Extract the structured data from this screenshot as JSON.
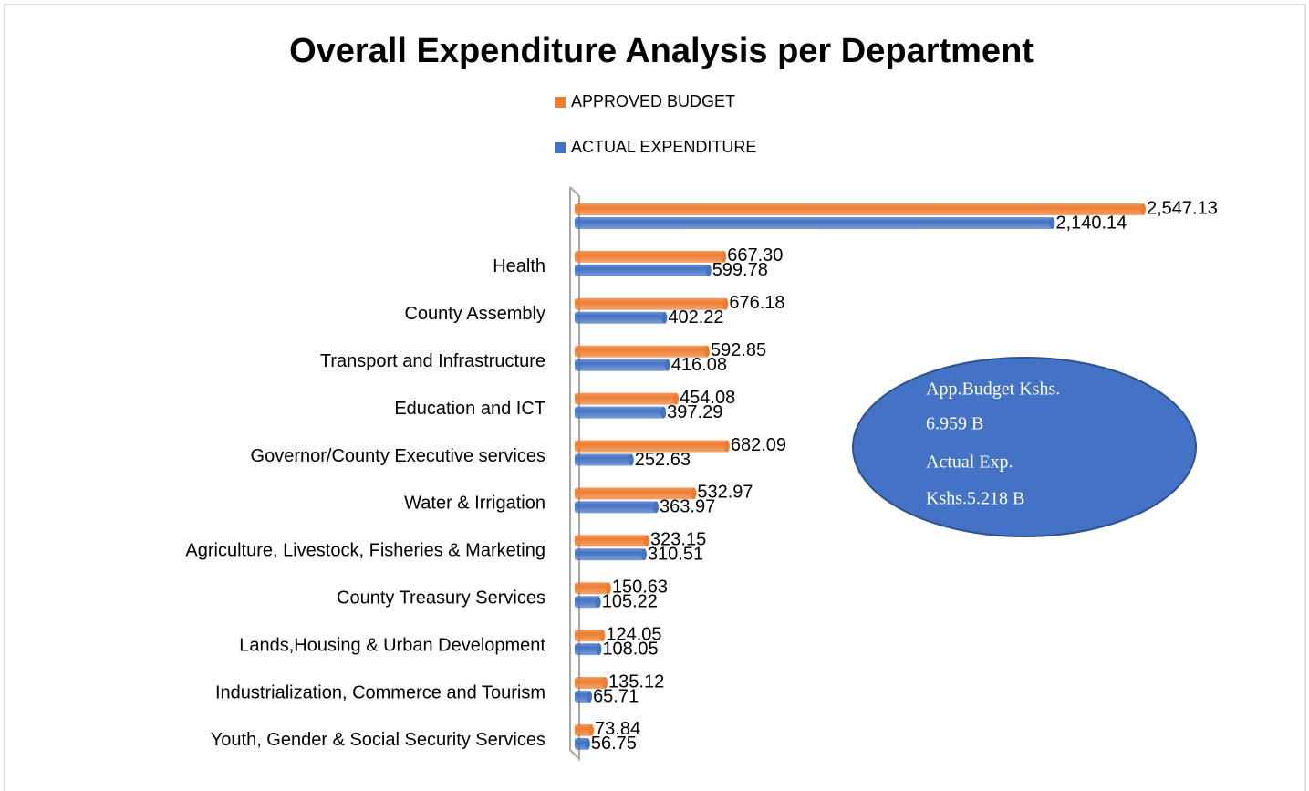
{
  "chart_data": {
    "type": "bar",
    "orientation": "horizontal",
    "title": "Overall Expenditure Analysis per Department",
    "categories": [
      null,
      "Health",
      "County Assembly",
      "Transport  and Infrastructure",
      "Education and ICT",
      "Governor/County Executive services",
      "Water & Irrigation",
      "Agriculture, Livestock, Fisheries & Marketing",
      "County Treasury Services",
      "Lands,Housing & Urban Development",
      "Industrialization, Commerce and Tourism",
      "Youth, Gender & Social Security Services"
    ],
    "series": [
      {
        "name": "APPROVED BUDGET",
        "color": "#ed7d31",
        "values": [
          2547.13,
          667.3,
          676.18,
          592.85,
          454.08,
          682.09,
          532.97,
          323.15,
          150.63,
          124.05,
          135.12,
          73.84
        ],
        "value_labels": [
          "2,547.13",
          "667.30",
          "676.18",
          "592.85",
          "454.08",
          "682.09",
          "532.97",
          "323.15",
          "150.63",
          "124.05",
          "135.12",
          "73.84"
        ]
      },
      {
        "name": "ACTUAL EXPENDITURE",
        "color": "#4472c4",
        "values": [
          2140.14,
          599.78,
          402.22,
          416.08,
          397.29,
          252.63,
          363.97,
          310.51,
          105.22,
          108.05,
          65.71,
          56.75
        ],
        "value_labels": [
          "2,140.14",
          "599.78",
          "402.22",
          "416.08",
          "397.29",
          "252.63",
          "363.97",
          "310.51",
          "105.22",
          "108.05",
          "65.71",
          "56.75"
        ]
      }
    ],
    "annotations": [
      "App.Budget Kshs.",
      "6.959 B",
      "Actual  Exp.",
      "Kshs.5.218 B"
    ]
  }
}
